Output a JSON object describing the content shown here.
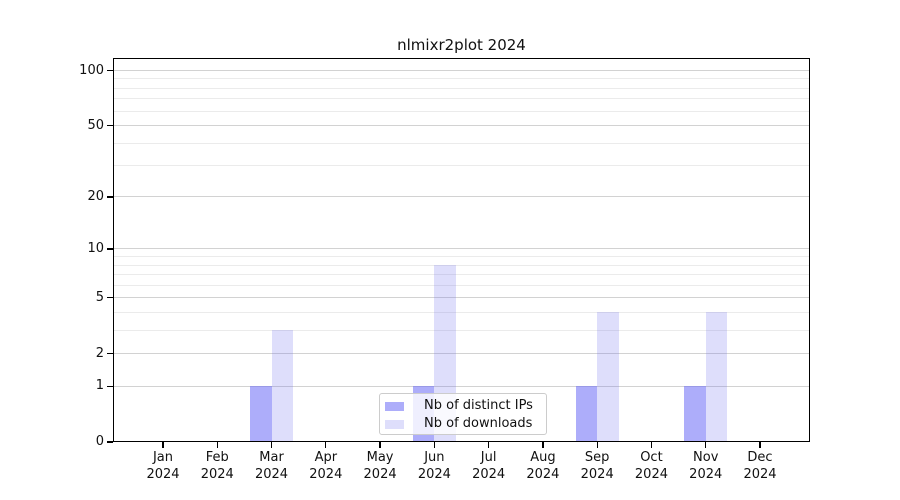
{
  "title": "nlmixr2plot 2024",
  "chart_data": {
    "type": "bar",
    "title": "nlmixr2plot 2024",
    "categories": [
      "Jan 2024",
      "Feb 2024",
      "Mar 2024",
      "Apr 2024",
      "May 2024",
      "Jun 2024",
      "Jul 2024",
      "Aug 2024",
      "Sep 2024",
      "Oct 2024",
      "Nov 2024",
      "Dec 2024"
    ],
    "x_tick_month": [
      "Jan",
      "Feb",
      "Mar",
      "Apr",
      "May",
      "Jun",
      "Jul",
      "Aug",
      "Sep",
      "Oct",
      "Nov",
      "Dec"
    ],
    "x_tick_year": "2024",
    "series": [
      {
        "name": "Nb of distinct IPs",
        "color": "#6969f5",
        "alpha": 0.55,
        "values": [
          0,
          0,
          1,
          0,
          0,
          1,
          0,
          0,
          1,
          0,
          1,
          0
        ]
      },
      {
        "name": "Nb of downloads",
        "color": "#6969eb",
        "alpha": 0.22,
        "values": [
          0,
          0,
          3,
          0,
          0,
          8,
          0,
          0,
          4,
          0,
          4,
          0
        ]
      }
    ],
    "y_scale": "log10(1+x)",
    "ylim": [
      0,
      117
    ],
    "y_ticks": [
      0,
      1,
      2,
      5,
      10,
      20,
      50,
      100
    ],
    "y_minor_gridlines": [
      3,
      4,
      6,
      7,
      8,
      9,
      30,
      40,
      60,
      70,
      80,
      90
    ],
    "grid": true,
    "legend_position": "lower center",
    "colors": {
      "major_grid": "#d2d2d2",
      "minor_grid": "#ebebeb",
      "axis": "#000000",
      "background": "#ffffff",
      "legend_border": "#cccccc"
    }
  }
}
